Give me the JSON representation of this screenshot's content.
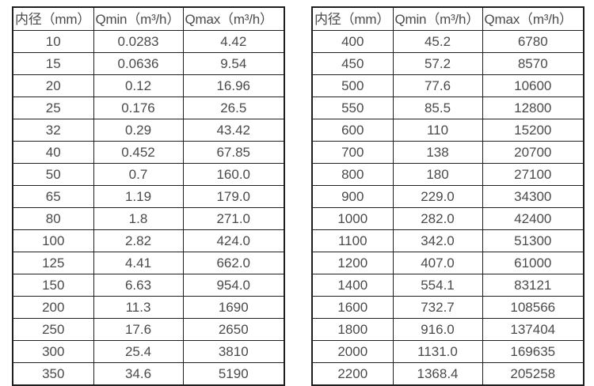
{
  "colors": {
    "background": "#ffffff",
    "border": "#1f1f1f",
    "text": "#4a4a4a"
  },
  "tables": [
    {
      "name": "flow-table-small-diameters",
      "headers": [
        "内径（mm）",
        "Qmin（m³/h）",
        "Qmax（m³/h）"
      ],
      "rows": [
        [
          "10",
          "0.0283",
          "4.42"
        ],
        [
          "15",
          "0.0636",
          "9.54"
        ],
        [
          "20",
          "0.12",
          "16.96"
        ],
        [
          "25",
          "0.176",
          "26.5"
        ],
        [
          "32",
          "0.29",
          "43.42"
        ],
        [
          "40",
          "0.452",
          "67.85"
        ],
        [
          "50",
          "0.7",
          "160.0"
        ],
        [
          "65",
          "1.19",
          "179.0"
        ],
        [
          "80",
          "1.8",
          "271.0"
        ],
        [
          "100",
          "2.82",
          "424.0"
        ],
        [
          "125",
          "4.41",
          "662.0"
        ],
        [
          "150",
          "6.63",
          "954.0"
        ],
        [
          "200",
          "11.3",
          "1690"
        ],
        [
          "250",
          "17.6",
          "2650"
        ],
        [
          "300",
          "25.4",
          "3810"
        ],
        [
          "350",
          "34.6",
          "5190"
        ]
      ]
    },
    {
      "name": "flow-table-large-diameters",
      "headers": [
        "内径（mm）",
        "Qmin（m³/h）",
        "Qmax（m³/h）"
      ],
      "rows": [
        [
          "400",
          "45.2",
          "6780"
        ],
        [
          "450",
          "57.2",
          "8570"
        ],
        [
          "500",
          "77.6",
          "10600"
        ],
        [
          "550",
          "85.5",
          "12800"
        ],
        [
          "600",
          "110",
          "15200"
        ],
        [
          "700",
          "138",
          "20700"
        ],
        [
          "800",
          "180",
          "27100"
        ],
        [
          "900",
          "229.0",
          "34300"
        ],
        [
          "1000",
          "282.0",
          "42400"
        ],
        [
          "1100",
          "342.0",
          "51300"
        ],
        [
          "1200",
          "407.0",
          "61000"
        ],
        [
          "1400",
          "554.1",
          "83121"
        ],
        [
          "1600",
          "732.7",
          "108566"
        ],
        [
          "1800",
          "916.0",
          "137404"
        ],
        [
          "2000",
          "1131.0",
          "169635"
        ],
        [
          "2200",
          "1368.4",
          "205258"
        ]
      ]
    }
  ]
}
